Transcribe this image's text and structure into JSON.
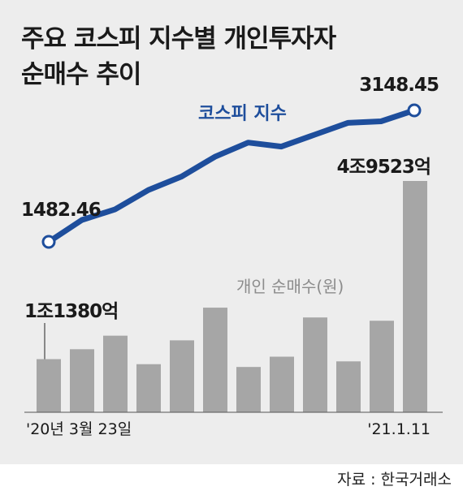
{
  "title_lines": [
    "주요 코스피 지수별 개인투자자",
    "순매수 추이"
  ],
  "source": "자료 : 한국거래소",
  "colors": {
    "line": "#1e4e9c",
    "bar": "#a6a6a6",
    "panel": "#ededed"
  },
  "chart_data": {
    "type": "bar+line",
    "x_axis": {
      "start_label": "'20년 3월 23일",
      "end_label": "'21.1.11"
    },
    "line_series": {
      "name": "코스피 지수",
      "values": [
        1482.46,
        1760,
        1895,
        2140,
        2310,
        2560,
        2740,
        2690,
        2840,
        2990,
        3010,
        3148.45
      ],
      "start_label": "1482.46",
      "end_label": "3148.45"
    },
    "bar_series": {
      "name": "개인 순매수(원)",
      "values": [
        11380,
        13500,
        16400,
        10300,
        15400,
        22400,
        9700,
        11900,
        20300,
        10900,
        19600,
        49523
      ],
      "start_label": "1조1380억",
      "end_label": "4조9523억"
    }
  }
}
